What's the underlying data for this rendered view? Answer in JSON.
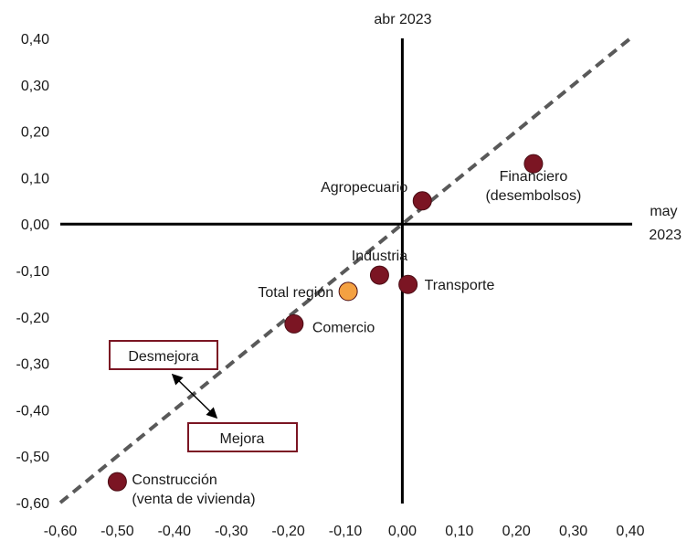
{
  "chart_data": {
    "type": "scatter",
    "x_axis_title": "may 2023",
    "y_axis_title": "abr 2023",
    "xlim": [
      -0.6,
      0.4
    ],
    "ylim": [
      -0.6,
      0.4
    ],
    "x_ticks": [
      "-0,60",
      "-0,50",
      "-0,40",
      "-0,30",
      "-0,20",
      "-0,10",
      "0,00",
      "0,10",
      "0,20",
      "0,30",
      "0,40"
    ],
    "y_ticks": [
      "-0,60",
      "-0,50",
      "-0,40",
      "-0,30",
      "-0,20",
      "-0,10",
      "0,00",
      "0,10",
      "0,20",
      "0,30",
      "0,40"
    ],
    "x_tick_values": [
      -0.6,
      -0.5,
      -0.4,
      -0.3,
      -0.2,
      -0.1,
      0.0,
      0.1,
      0.2,
      0.3,
      0.4
    ],
    "y_tick_values": [
      -0.6,
      -0.5,
      -0.4,
      -0.3,
      -0.2,
      -0.1,
      0.0,
      0.1,
      0.2,
      0.3,
      0.4
    ],
    "points": [
      {
        "label": "Agropecuario",
        "x": 0.035,
        "y": 0.05,
        "color": "#7b1523"
      },
      {
        "label": "Financiero (desembolsos)",
        "x": 0.23,
        "y": 0.13,
        "color": "#7b1523"
      },
      {
        "label": "Industria",
        "x": -0.04,
        "y": -0.11,
        "color": "#7b1523"
      },
      {
        "label": "Transporte",
        "x": 0.01,
        "y": -0.13,
        "color": "#7b1523"
      },
      {
        "label": "Total región",
        "x": -0.095,
        "y": -0.145,
        "color": "#f4a142"
      },
      {
        "label": "Comercio",
        "x": -0.19,
        "y": -0.215,
        "color": "#7b1523"
      },
      {
        "label": "Construcción (venta de vivienda)",
        "x": -0.5,
        "y": -0.555,
        "color": "#7b1523"
      }
    ],
    "reference_line": {
      "type": "diagonal",
      "style": "dashed",
      "color": "#595959"
    },
    "annotations": {
      "worse": "Desmejora",
      "better": "Mejora"
    },
    "grid": false,
    "legend": "none"
  }
}
